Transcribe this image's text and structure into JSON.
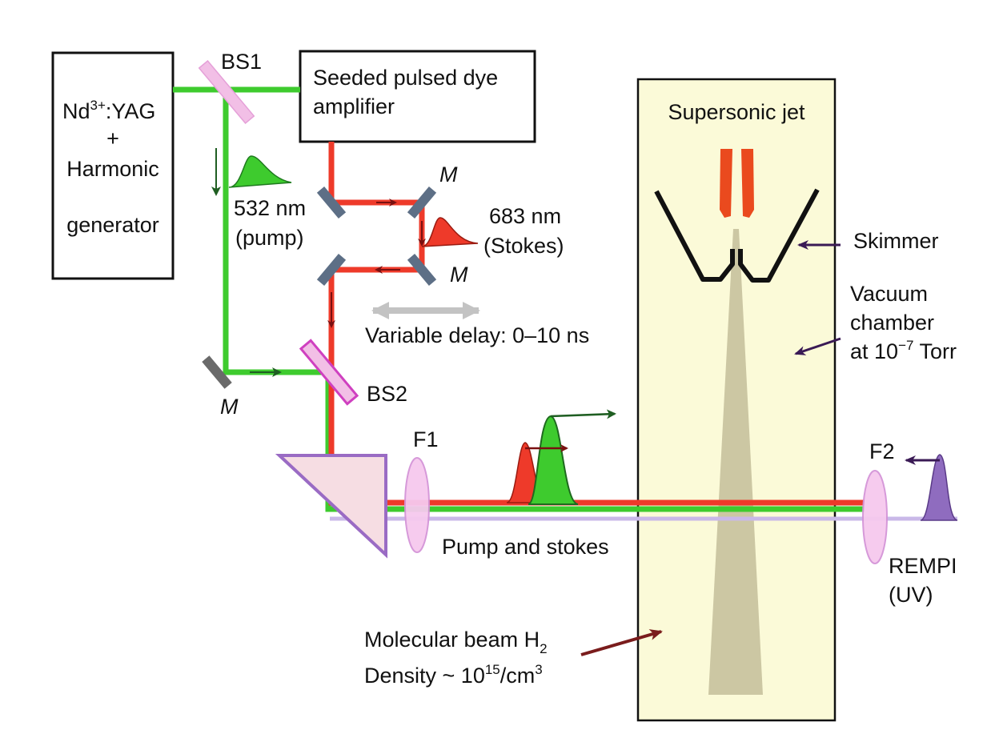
{
  "laser_box": {
    "line1_main": "Nd",
    "line1_sup": "3+",
    "line1_rest": ":YAG",
    "line2": "+",
    "line3": "Harmonic",
    "line4": "generator"
  },
  "amplifier": {
    "line1": "Seeded pulsed dye",
    "line2": "amplifier"
  },
  "labels": {
    "bs1": "BS1",
    "bs2": "BS2",
    "mirror": "M",
    "pump_wavelength": "532 nm",
    "pump_name": "(pump)",
    "stokes_wavelength": "683 nm",
    "stokes_name": "(Stokes)",
    "delay": "Variable delay: 0–10 ns",
    "f1": "F1",
    "f2": "F2",
    "pump_and_stokes": "Pump and stokes",
    "rempi": "REMPI",
    "uv": "(UV)",
    "jet": "Supersonic jet",
    "skimmer": "Skimmer",
    "vacuum1": "Vacuum",
    "vacuum2": "chamber",
    "vacuum3_main": "at 10",
    "vacuum3_sup": "−7",
    "vacuum3_rest": " Torr",
    "mb_main": "Molecular beam H",
    "mb_sub": "2",
    "density_main": "Density ~ 10",
    "density_sup": "15",
    "density_mid": "/cm",
    "density_sup2": "3"
  },
  "colors": {
    "pump_beam": "#3ecb2e",
    "stokes_beam": "#ee3a2a",
    "uv_beam": "#c9b8e8",
    "chamber_fill": "#fbfad8",
    "jet_cone": "#c9c4a0",
    "beamsplitter": "#f2bfe6",
    "mirror": "#5d6f86",
    "prism": "#9a6bc4",
    "nozzle": "#ea4a1e"
  }
}
